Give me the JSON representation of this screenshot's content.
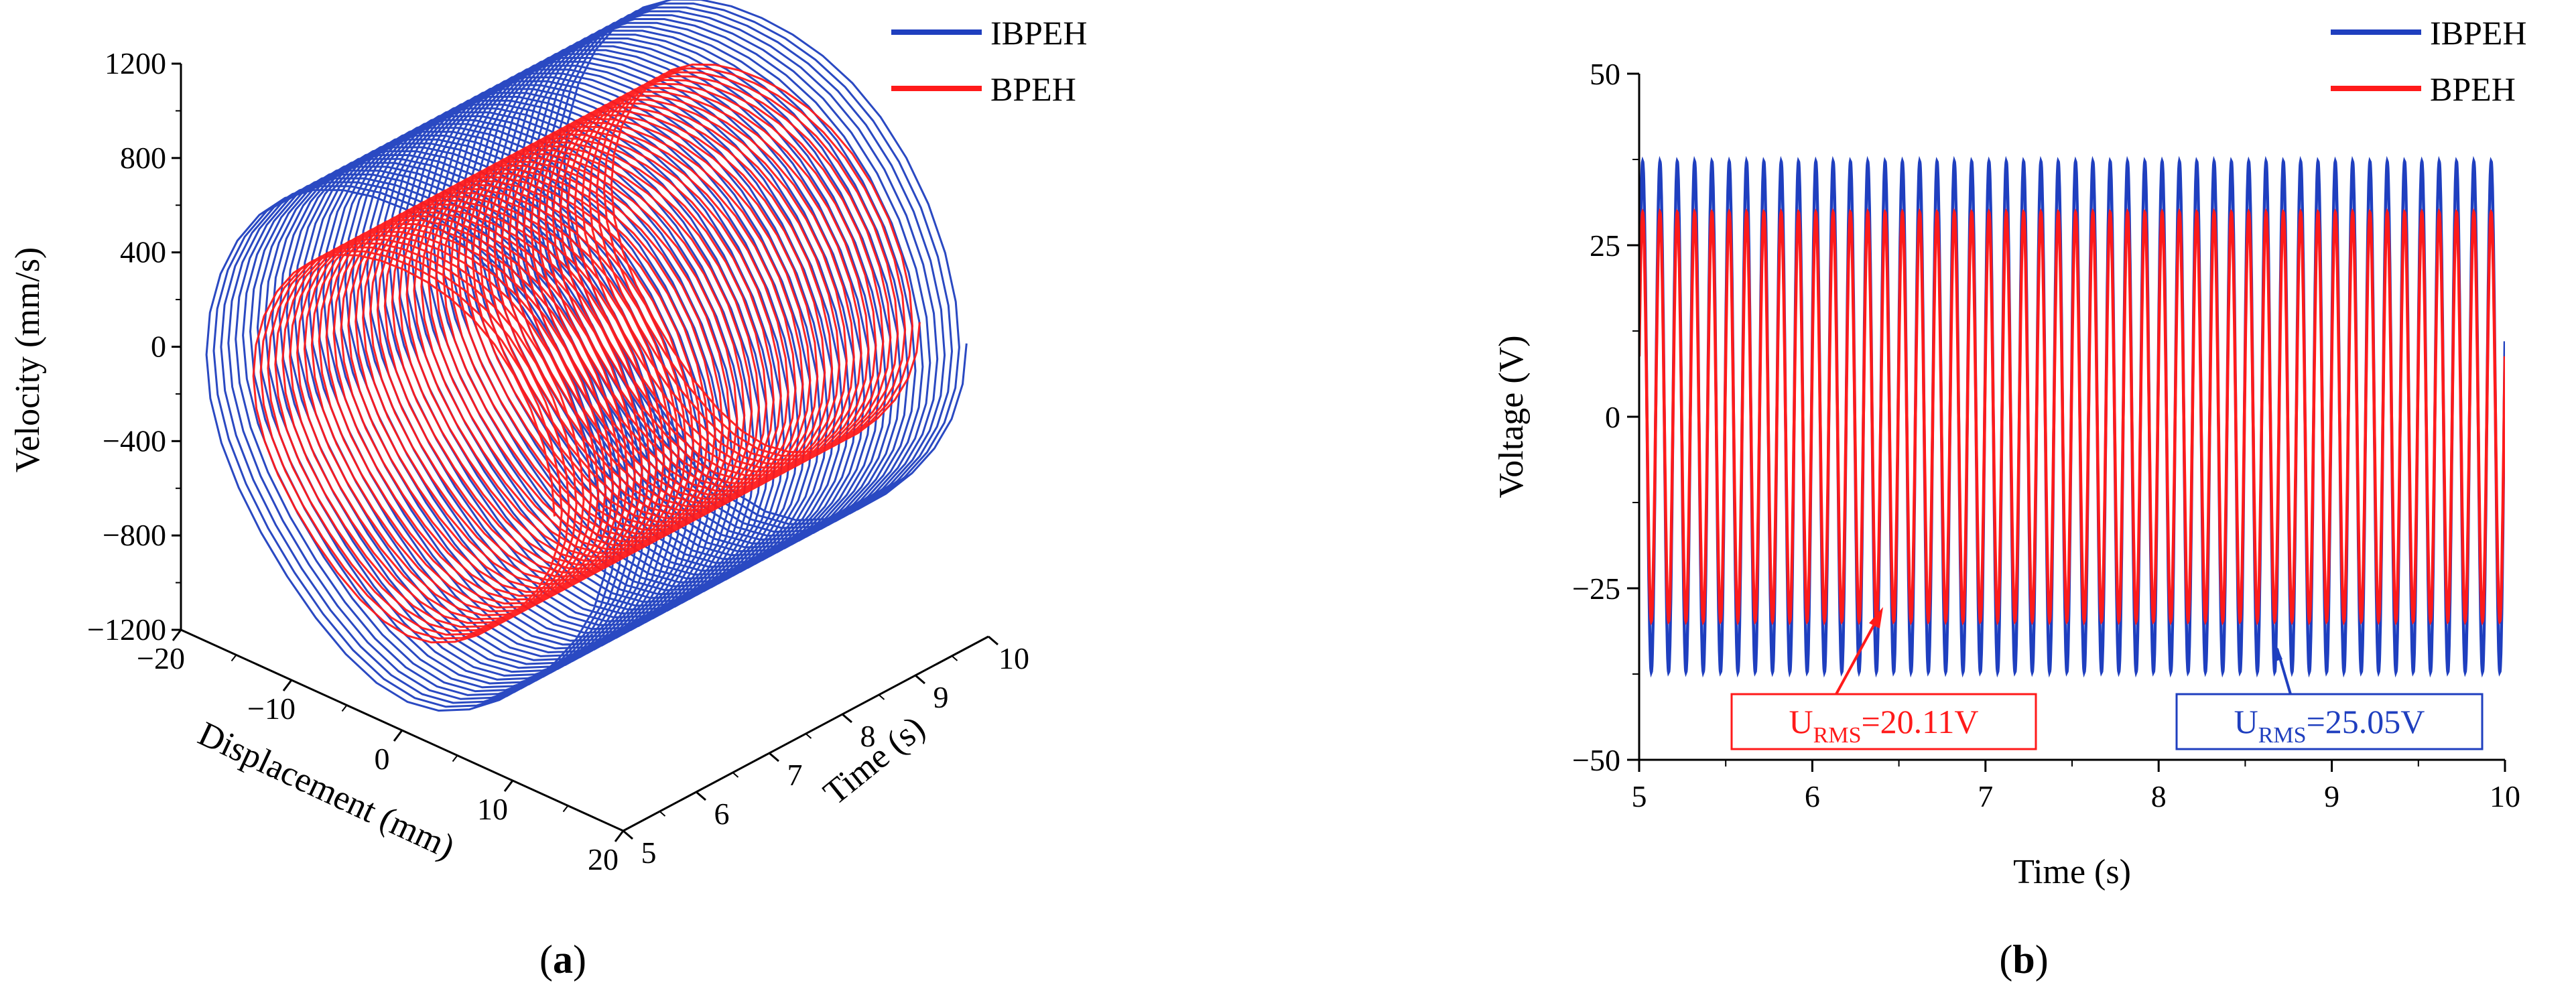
{
  "chart_data": [
    {
      "panel": "(a)",
      "panel_label_paren_open": "(",
      "panel_label_letter": "a",
      "panel_label_paren_close": ")",
      "type": "line",
      "projection": "3d",
      "title": "",
      "xlabel": "Displacement (mm)",
      "ylabel": "Time (s)",
      "zlabel": "Velocity (mm/s)",
      "xticks": [
        "−20",
        "−10",
        "0",
        "10",
        "20"
      ],
      "yticks": [
        "5",
        "6",
        "7",
        "8",
        "9",
        "10"
      ],
      "zticks": [
        "1200",
        "800",
        "400",
        "0",
        "−400",
        "−800",
        "−1200"
      ],
      "xlim": [
        -20,
        20
      ],
      "ylim": [
        5,
        10
      ],
      "zlim": [
        -1200,
        1200
      ],
      "legend_position": "top-right",
      "series": [
        {
          "name": "IBPEH",
          "color": "#1f3fbf",
          "displacement_amplitude_mm": 17,
          "velocity_amplitude_mm_s": 1050,
          "cycles": 50
        },
        {
          "name": "BPEH",
          "color": "#ff1a1a",
          "displacement_amplitude_mm": 13,
          "velocity_amplitude_mm_s": 780,
          "cycles": 50
        }
      ]
    },
    {
      "panel": "(b)",
      "panel_label_paren_open": "(",
      "panel_label_letter": "b",
      "panel_label_paren_close": ")",
      "type": "line",
      "title": "",
      "xlabel": "Time (s)",
      "ylabel": "Voltage (V)",
      "xticks": [
        "5",
        "6",
        "7",
        "8",
        "9",
        "10"
      ],
      "yticks": [
        "50",
        "25",
        "0",
        "−25",
        "−50"
      ],
      "xlim": [
        5,
        10
      ],
      "ylim": [
        -50,
        50
      ],
      "legend_position": "top-right",
      "series": [
        {
          "name": "IBPEH",
          "color": "#1f3fbf",
          "amplitude_V": 37.2,
          "frequency_Hz": 10
        },
        {
          "name": "BPEH",
          "color": "#ff1a1a",
          "amplitude_V": 29.8,
          "frequency_Hz": 10
        }
      ],
      "annotations": [
        {
          "series": "BPEH",
          "prefix": "U",
          "subscript": "RMS",
          "value": "=20.11V",
          "color": "#ff1a1a"
        },
        {
          "series": "IBPEH",
          "prefix": "U",
          "subscript": "RMS",
          "value": "=25.05V",
          "color": "#1f3fbf"
        }
      ]
    }
  ]
}
